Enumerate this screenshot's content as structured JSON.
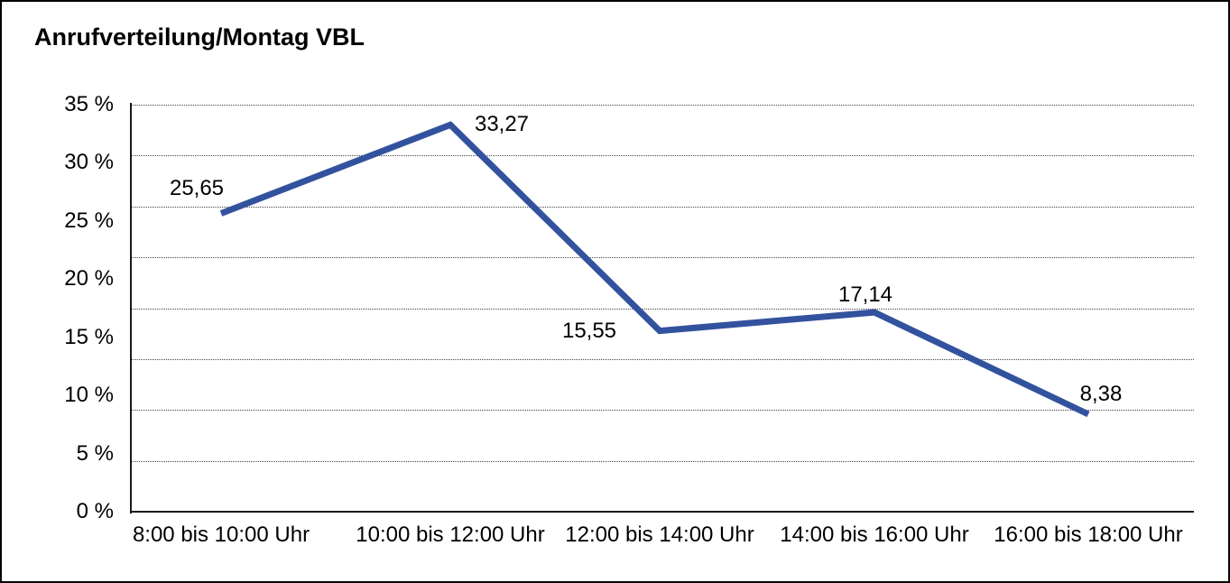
{
  "chart_data": {
    "type": "line",
    "title": "Anrufverteilung/Montag VBL",
    "categories": [
      "8:00 bis 10:00 Uhr",
      "10:00 bis 12:00 Uhr",
      "12:00 bis 14:00 Uhr",
      "14:00 bis 16:00 Uhr",
      "16:00 bis 18:00 Uhr"
    ],
    "values": [
      25.65,
      33.27,
      15.55,
      17.14,
      8.38
    ],
    "data_labels": [
      "25,65",
      "33,27",
      "15,55",
      "17,14",
      "8,38"
    ],
    "xlabel": "",
    "ylabel": "",
    "ylim": [
      0,
      35
    ],
    "y_ticks": [
      {
        "value": 0,
        "label": "0 %"
      },
      {
        "value": 5,
        "label": "5 %"
      },
      {
        "value": 10,
        "label": "10 %"
      },
      {
        "value": 15,
        "label": "15 %"
      },
      {
        "value": 20,
        "label": "20 %"
      },
      {
        "value": 25,
        "label": "25 %"
      },
      {
        "value": 30,
        "label": "30 %"
      },
      {
        "value": 35,
        "label": "35 %"
      }
    ],
    "grid": "horizontal-dotted",
    "gridline_divisions": 8,
    "legend": "none",
    "line_color": "#33529e",
    "axis_color": "#1a1a1a",
    "text_color": "#000000",
    "background": "#ffffff"
  }
}
